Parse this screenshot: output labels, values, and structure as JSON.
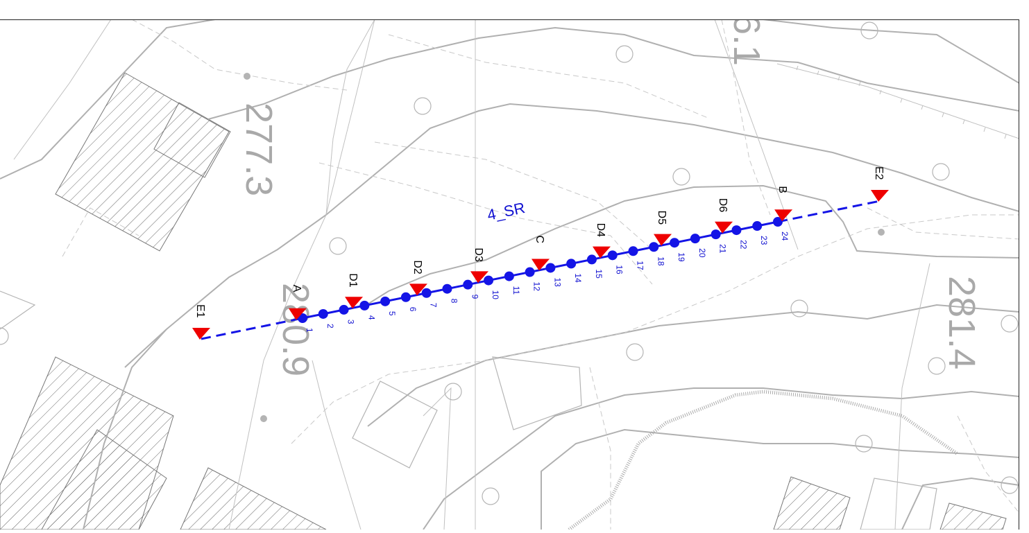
{
  "map": {
    "line_name": "4_SR",
    "colors": {
      "line": "#1414e6",
      "marker": "#ee0000",
      "basemap": "#b4b4b4",
      "dashed": "#c8c8c8",
      "hatch": "#555555",
      "elevation_text": "#a9a9a9"
    },
    "elevations": [
      {
        "label": "277.3"
      },
      {
        "label": "280.9"
      },
      {
        "label": "281.4"
      },
      {
        "label": "6.1"
      }
    ],
    "station_labels": [
      "E1",
      "A",
      "D1",
      "D2",
      "D3",
      "C",
      "D4",
      "D5",
      "D6",
      "B",
      "E2"
    ],
    "electrode_count": 24,
    "electrode_numbers": [
      "1",
      "2",
      "3",
      "4",
      "5",
      "6",
      "7",
      "8",
      "9",
      "10",
      "11",
      "12",
      "13",
      "14",
      "15",
      "16",
      "17",
      "18",
      "19",
      "20",
      "21",
      "22",
      "23",
      "24"
    ],
    "icons": [
      "red-triangle-marker-icon",
      "blue-dot-electrode-icon",
      "survey-point-circle-icon"
    ]
  }
}
